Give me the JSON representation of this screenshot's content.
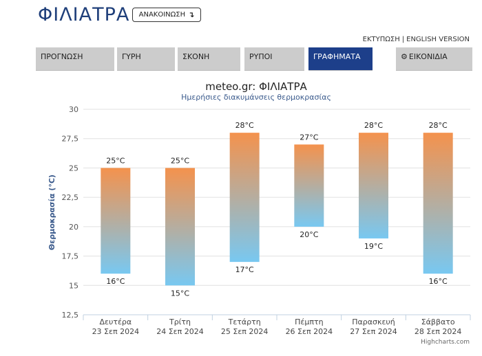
{
  "header": {
    "title": "ΦΙΛΙΑΤΡΑ",
    "announce_label": "ΑΝΑΚΟΙΝΩΣΗ",
    "announce_icon": "return-arrow-icon",
    "print_link": "ΕΚΤΥΠΩΣΗ",
    "separator": "|",
    "english_link": "ENGLISH VERSION"
  },
  "tabs": [
    {
      "label": "ΠΡΟΓΝΩΣΗ",
      "active": false
    },
    {
      "label": "ΓΥΡΗ",
      "active": false
    },
    {
      "label": "ΣΚΟΝΗ",
      "active": false
    },
    {
      "label": "ΡΥΠΟΙ",
      "active": false
    },
    {
      "label": "ΓΡΑΦΗΜΑΤΑ",
      "active": true
    },
    {
      "label": "ΕΙΚΟΝΙΔΙΑ",
      "active": false,
      "icon": "gear-icon"
    }
  ],
  "colors": {
    "brand": "#1f3f7a",
    "active_tab": "#1d3f8a",
    "bar_top": "#f4924d",
    "bar_bottom": "#78c8f1"
  },
  "chart_data": {
    "type": "bar",
    "subtype": "columnrange",
    "title": "meteo.gr: ΦΙΛΙΑΤΡΑ",
    "subtitle": "Ημερήσιες διακυμάνσεις θερμοκρασίας",
    "ylabel": "Θερμοκρασία (°C)",
    "xlabel": "",
    "ylim": [
      12.5,
      30
    ],
    "yticks": [
      "30",
      "27,5",
      "25",
      "22,5",
      "20",
      "17,5",
      "15",
      "12,5"
    ],
    "grid": true,
    "categories": [
      {
        "day": "Δευτέρα",
        "date": "23 Σεπ 2024"
      },
      {
        "day": "Τρίτη",
        "date": "24 Σεπ 2024"
      },
      {
        "day": "Τετάρτη",
        "date": "25 Σεπ 2024"
      },
      {
        "day": "Πέμπτη",
        "date": "26 Σεπ 2024"
      },
      {
        "day": "Παρασκευή",
        "date": "27 Σεπ 2024"
      },
      {
        "day": "Σάββατο",
        "date": "28 Σεπ 2024"
      }
    ],
    "low": [
      16,
      15,
      17,
      20,
      19,
      16
    ],
    "high": [
      25,
      25,
      28,
      27,
      28,
      28
    ],
    "low_labels": [
      "16°C",
      "15°C",
      "17°C",
      "20°C",
      "19°C",
      "16°C"
    ],
    "high_labels": [
      "25°C",
      "25°C",
      "28°C",
      "27°C",
      "28°C",
      "28°C"
    ],
    "credits": "Highcharts.com"
  }
}
